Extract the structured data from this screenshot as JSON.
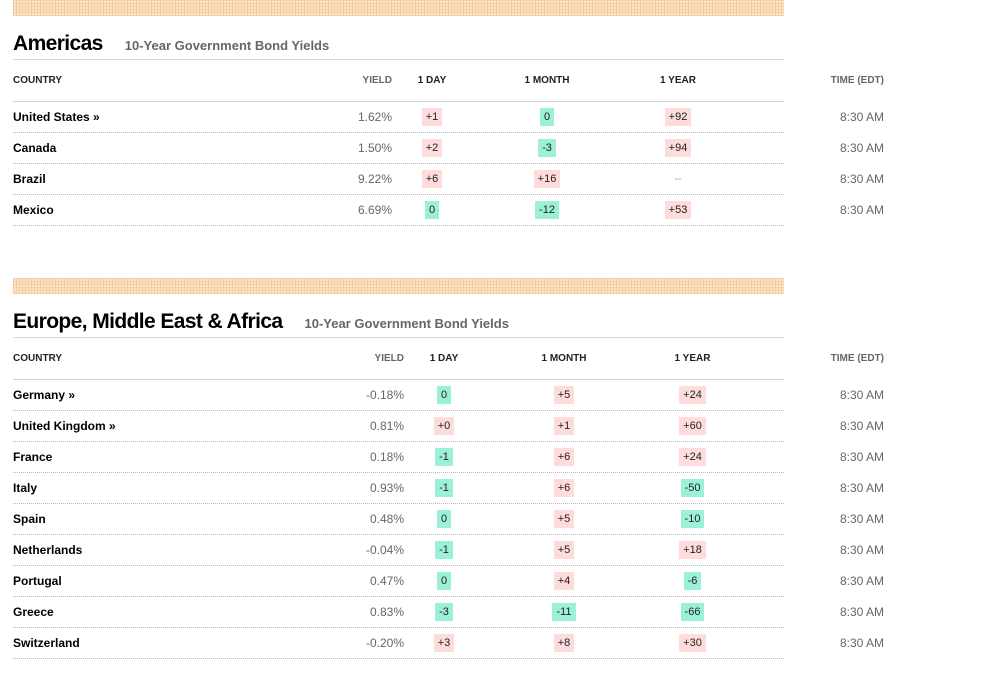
{
  "colors": {
    "up": "#fddcdb",
    "down": "#9bf0d8"
  },
  "americas": {
    "region": "Americas",
    "subtitle": "10-Year Government Bond Yields",
    "columns": {
      "country": "COUNTRY",
      "yield": "YIELD",
      "day": "1 DAY",
      "month": "1 MONTH",
      "year": "1 YEAR",
      "time": "TIME (EDT)"
    },
    "rows": [
      {
        "country": "United States »",
        "yield": "1.62%",
        "day": "+1",
        "day_dir": "up",
        "month": "0",
        "month_dir": "down",
        "year": "+92",
        "year_dir": "up",
        "time": "8:30 AM"
      },
      {
        "country": "Canada",
        "yield": "1.50%",
        "day": "+2",
        "day_dir": "up",
        "month": "-3",
        "month_dir": "down",
        "year": "+94",
        "year_dir": "up",
        "time": "8:30 AM"
      },
      {
        "country": "Brazil",
        "yield": "9.22%",
        "day": "+6",
        "day_dir": "up",
        "month": "+16",
        "month_dir": "up",
        "year": "--",
        "year_dir": "flat",
        "time": "8:30 AM"
      },
      {
        "country": "Mexico",
        "yield": "6.69%",
        "day": "0",
        "day_dir": "down",
        "month": "-12",
        "month_dir": "down",
        "year": "+53",
        "year_dir": "up",
        "time": "8:30 AM"
      }
    ]
  },
  "emea": {
    "region": "Europe, Middle East & Africa",
    "subtitle": "10-Year Government Bond Yields",
    "columns": {
      "country": "COUNTRY",
      "yield": "YIELD",
      "day": "1 DAY",
      "month": "1 MONTH",
      "year": "1 YEAR",
      "time": "TIME (EDT)"
    },
    "rows": [
      {
        "country": "Germany »",
        "yield": "-0.18%",
        "day": "0",
        "day_dir": "down",
        "month": "+5",
        "month_dir": "up",
        "year": "+24",
        "year_dir": "up",
        "time": "8:30 AM"
      },
      {
        "country": "United Kingdom »",
        "yield": "0.81%",
        "day": "+0",
        "day_dir": "up",
        "month": "+1",
        "month_dir": "up",
        "year": "+60",
        "year_dir": "up",
        "time": "8:30 AM"
      },
      {
        "country": "France",
        "yield": "0.18%",
        "day": "-1",
        "day_dir": "down",
        "month": "+6",
        "month_dir": "up",
        "year": "+24",
        "year_dir": "up",
        "time": "8:30 AM"
      },
      {
        "country": "Italy",
        "yield": "0.93%",
        "day": "-1",
        "day_dir": "down",
        "month": "+6",
        "month_dir": "up",
        "year": "-50",
        "year_dir": "down",
        "time": "8:30 AM"
      },
      {
        "country": "Spain",
        "yield": "0.48%",
        "day": "0",
        "day_dir": "down",
        "month": "+5",
        "month_dir": "up",
        "year": "-10",
        "year_dir": "down",
        "time": "8:30 AM"
      },
      {
        "country": "Netherlands",
        "yield": "-0.04%",
        "day": "-1",
        "day_dir": "down",
        "month": "+5",
        "month_dir": "up",
        "year": "+18",
        "year_dir": "up",
        "time": "8:30 AM"
      },
      {
        "country": "Portugal",
        "yield": "0.47%",
        "day": "0",
        "day_dir": "down",
        "month": "+4",
        "month_dir": "up",
        "year": "-6",
        "year_dir": "down",
        "time": "8:30 AM"
      },
      {
        "country": "Greece",
        "yield": "0.83%",
        "day": "-3",
        "day_dir": "down",
        "month": "-11",
        "month_dir": "down",
        "year": "-66",
        "year_dir": "down",
        "time": "8:30 AM"
      },
      {
        "country": "Switzerland",
        "yield": "-0.20%",
        "day": "+3",
        "day_dir": "up",
        "month": "+8",
        "month_dir": "up",
        "year": "+30",
        "year_dir": "up",
        "time": "8:30 AM"
      }
    ]
  }
}
